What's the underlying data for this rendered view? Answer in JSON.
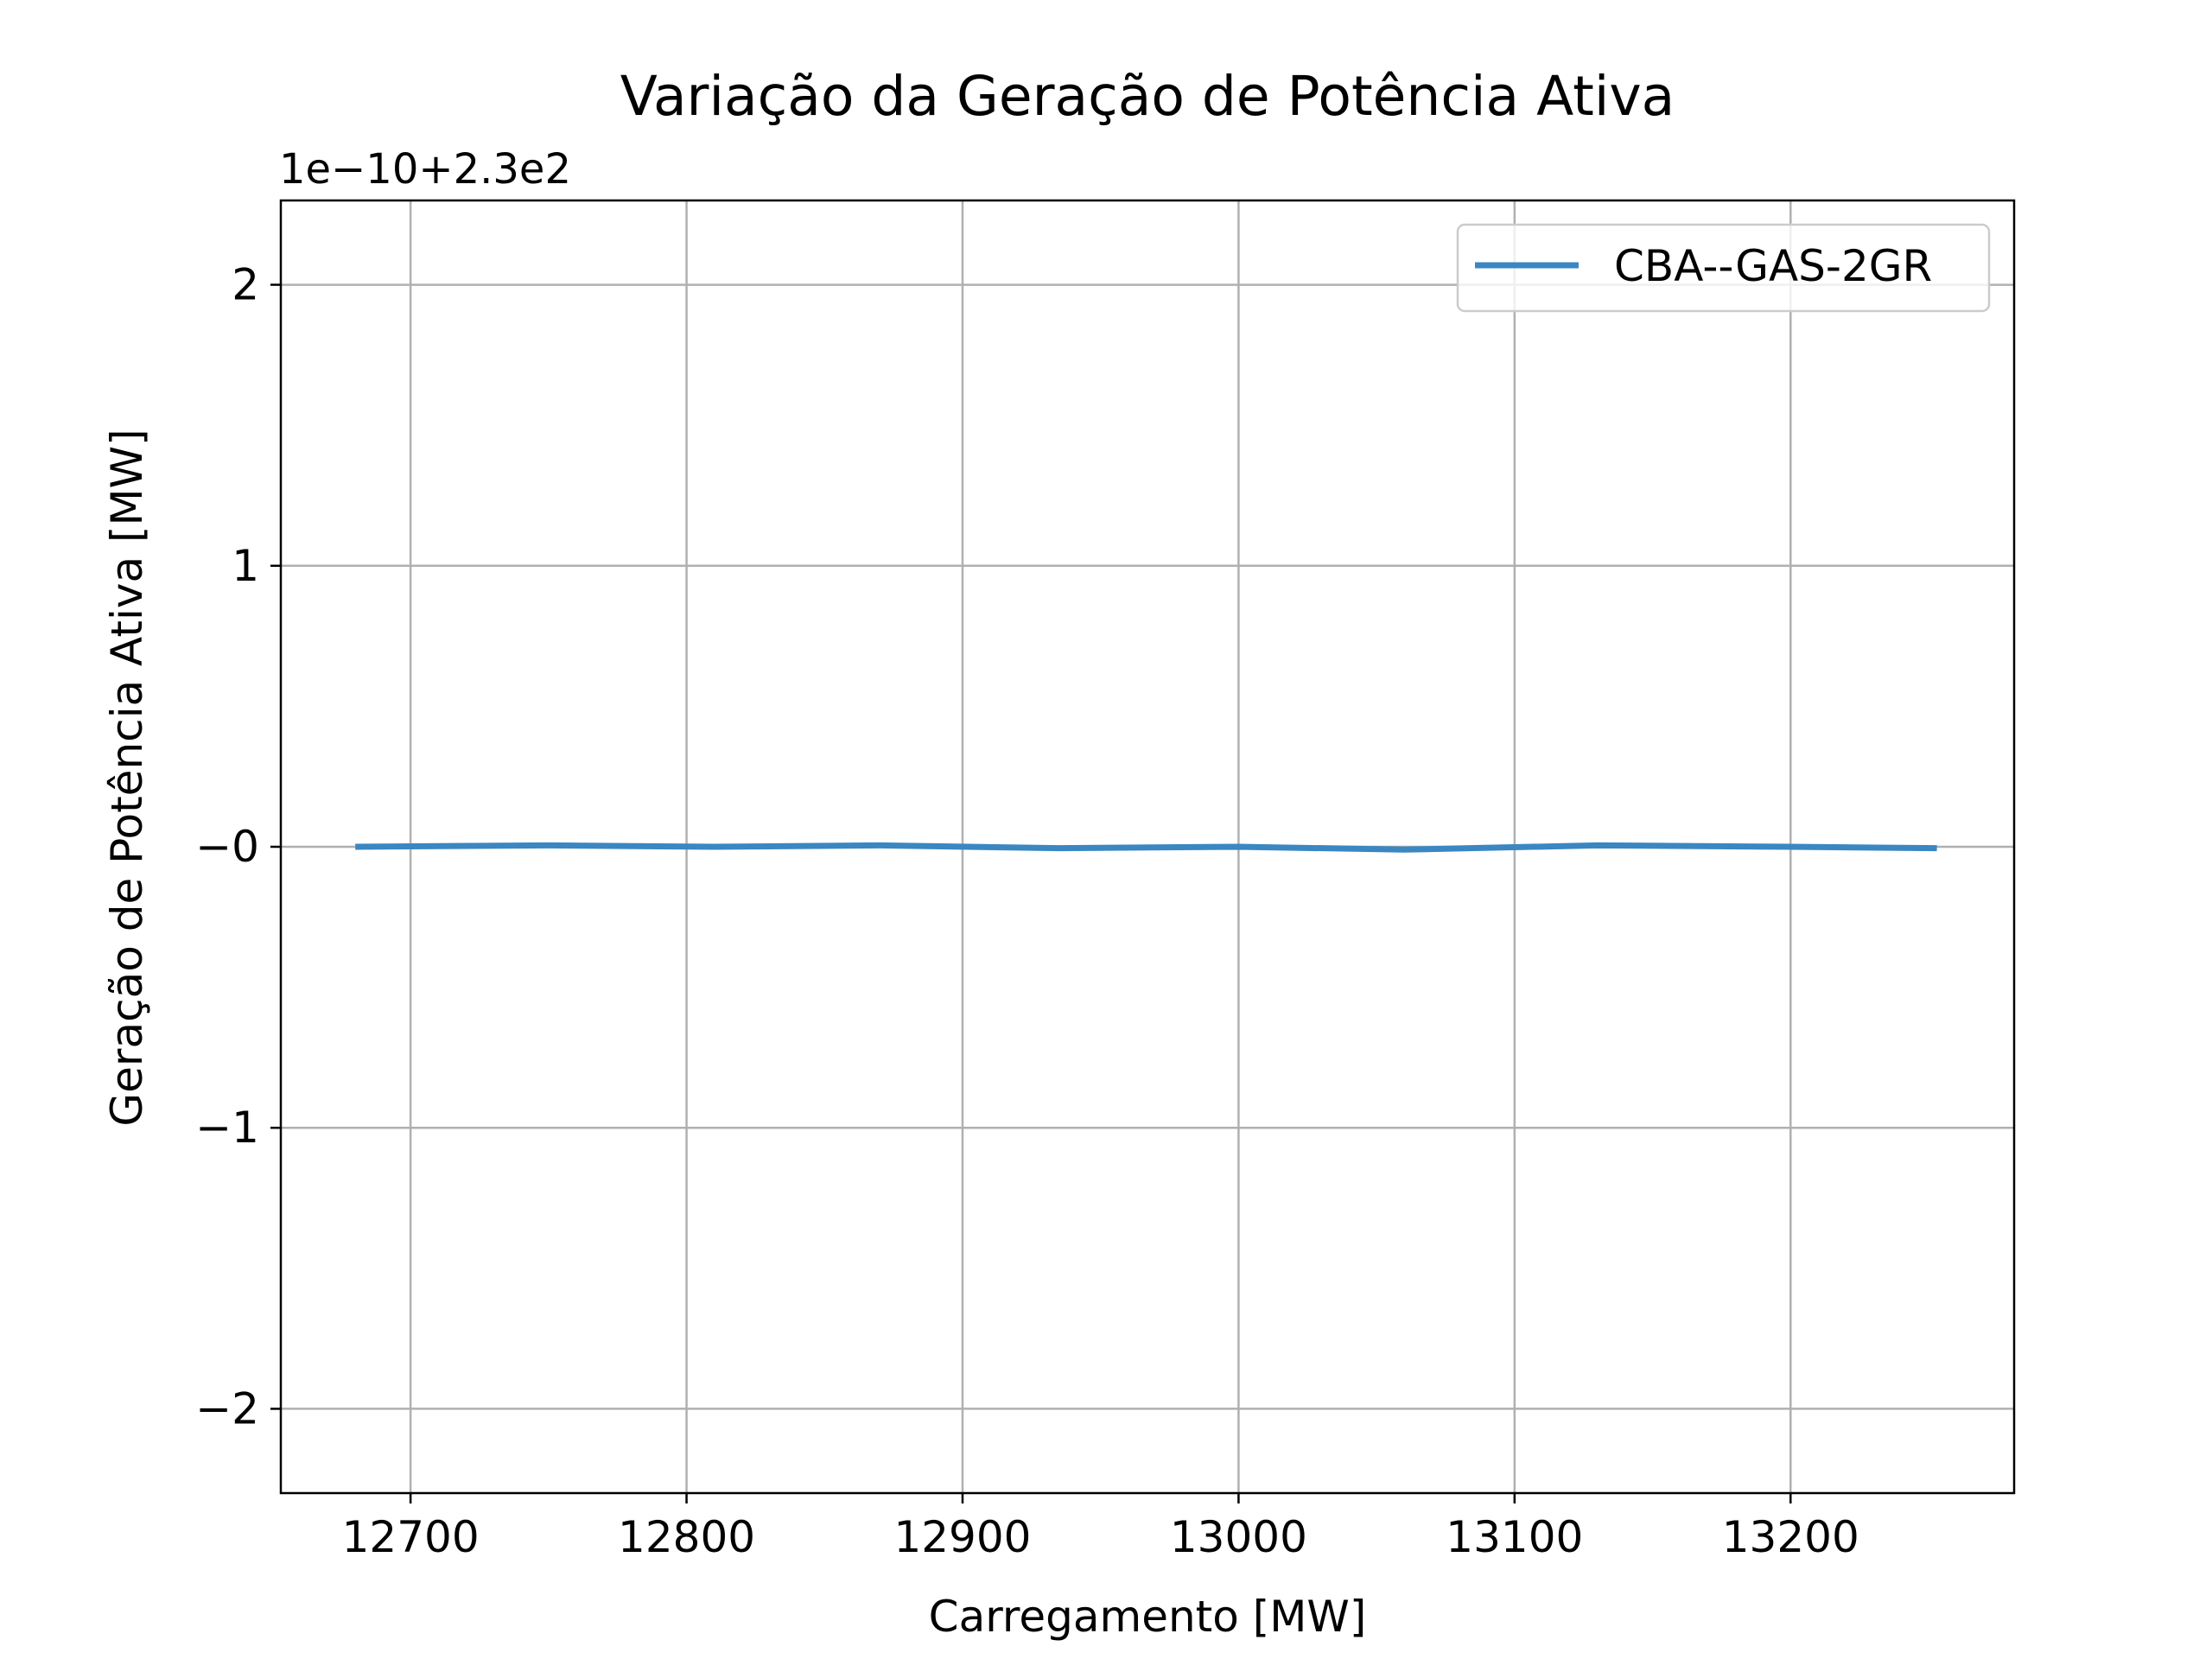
{
  "chart_data": {
    "type": "line",
    "title": "Variação da Geração de Potência Ativa",
    "xlabel": "Carregamento [MW]",
    "ylabel": "Geração de Potência Ativa [MW]",
    "offset_label": "1e−10+2.3e2",
    "xlim": [
      12653,
      13281
    ],
    "ylim": [
      -2.3,
      2.3
    ],
    "x_ticks": [
      12700,
      12800,
      12900,
      13000,
      13100,
      13200
    ],
    "x_tick_labels": [
      "12700",
      "12800",
      "12900",
      "13000",
      "13100",
      "13200"
    ],
    "y_ticks": [
      2,
      1,
      0,
      -1,
      -2
    ],
    "y_tick_labels": [
      "2",
      "1",
      "−0",
      "−1",
      "−2"
    ],
    "grid": true,
    "legend_position": "top-right",
    "series": [
      {
        "name": "CBA--GAS-2GR",
        "color": "#3a87c2",
        "x": [
          12680,
          12750,
          12810,
          12870,
          12935,
          13000,
          13060,
          13130,
          13200,
          13253
        ],
        "y": [
          0.0,
          0.005,
          0.0,
          0.005,
          -0.005,
          0.0,
          -0.01,
          0.005,
          0.0,
          -0.005
        ]
      }
    ]
  }
}
